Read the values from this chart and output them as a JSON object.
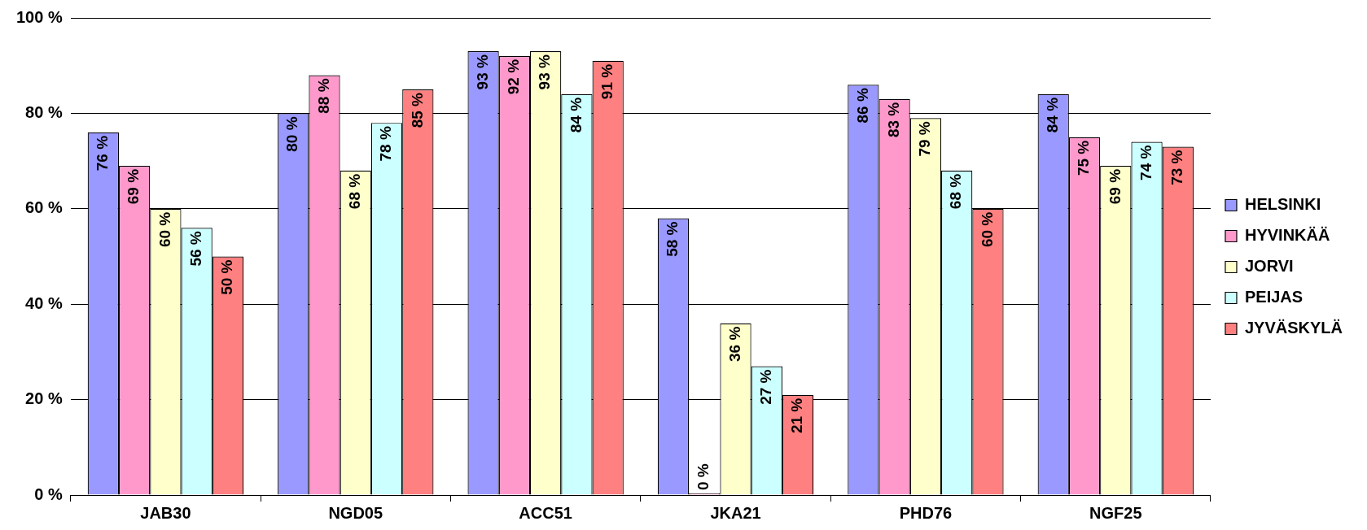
{
  "chart_data": {
    "type": "bar",
    "categories": [
      "JAB30",
      "NGD05",
      "ACC51",
      "JKA21",
      "PHD76",
      "NGF25"
    ],
    "series": [
      {
        "name": "HELSINKI",
        "color": "#9999ff",
        "values": [
          76,
          80,
          93,
          58,
          86,
          84
        ],
        "value_labels": [
          "76 %",
          "80 %",
          "93 %",
          "58 %",
          "86 %",
          "84 %"
        ]
      },
      {
        "name": "HYVINKÄÄ",
        "color": "#ff99cc",
        "values": [
          69,
          88,
          92,
          0,
          83,
          75
        ],
        "value_labels": [
          "69 %",
          "88 %",
          "92 %",
          "0 %",
          "83 %",
          "75 %"
        ]
      },
      {
        "name": "JORVI",
        "color": "#ffffcc",
        "values": [
          60,
          68,
          93,
          36,
          79,
          69
        ],
        "value_labels": [
          "60 %",
          "68 %",
          "93 %",
          "36 %",
          "79 %",
          "69 %"
        ]
      },
      {
        "name": "PEIJAS",
        "color": "#ccffff",
        "values": [
          56,
          78,
          84,
          27,
          68,
          74
        ],
        "value_labels": [
          "56 %",
          "78 %",
          "84 %",
          "27 %",
          "68 %",
          "74 %"
        ]
      },
      {
        "name": "JYVÄSKYLÄ",
        "color": "#ff8080",
        "values": [
          50,
          85,
          91,
          21,
          60,
          73
        ],
        "value_labels": [
          "50 %",
          "85 %",
          "91 %",
          "21 %",
          "60 %",
          "73 %"
        ]
      }
    ],
    "ylim": [
      0,
      100
    ],
    "yticks": [
      {
        "value": 0,
        "label": "0 %"
      },
      {
        "value": 20,
        "label": "20 %"
      },
      {
        "value": 40,
        "label": "40 %"
      },
      {
        "value": 60,
        "label": "60 %"
      },
      {
        "value": 80,
        "label": "80 %"
      },
      {
        "value": 100,
        "label": "100 %"
      }
    ],
    "grid": "y",
    "legend": "right"
  }
}
